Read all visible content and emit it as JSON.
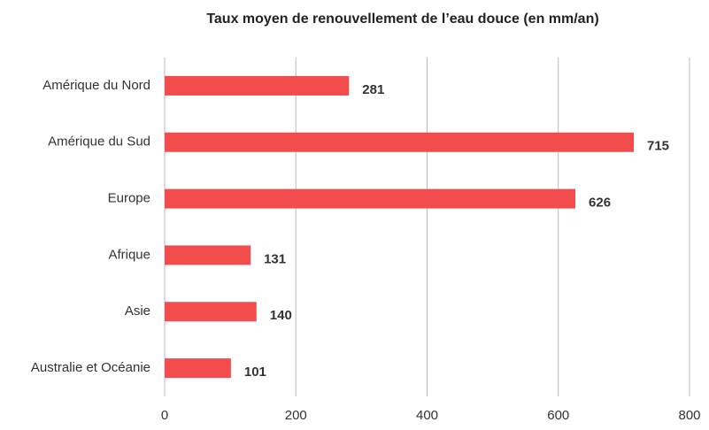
{
  "chart_data": {
    "type": "bar",
    "orientation": "horizontal",
    "title": "Taux moyen de renouvellement de l’eau douce (en mm/an)",
    "categories": [
      "Amérique du Nord",
      "Amérique du Sud",
      "Europe",
      "Afrique",
      "Asie",
      "Australie et Océanie"
    ],
    "values": [
      281,
      715,
      626,
      131,
      140,
      101
    ],
    "color": "#f24c4c",
    "xlim": [
      0,
      800
    ],
    "xticks": [
      0,
      200,
      400,
      600,
      800
    ],
    "grid": true
  }
}
